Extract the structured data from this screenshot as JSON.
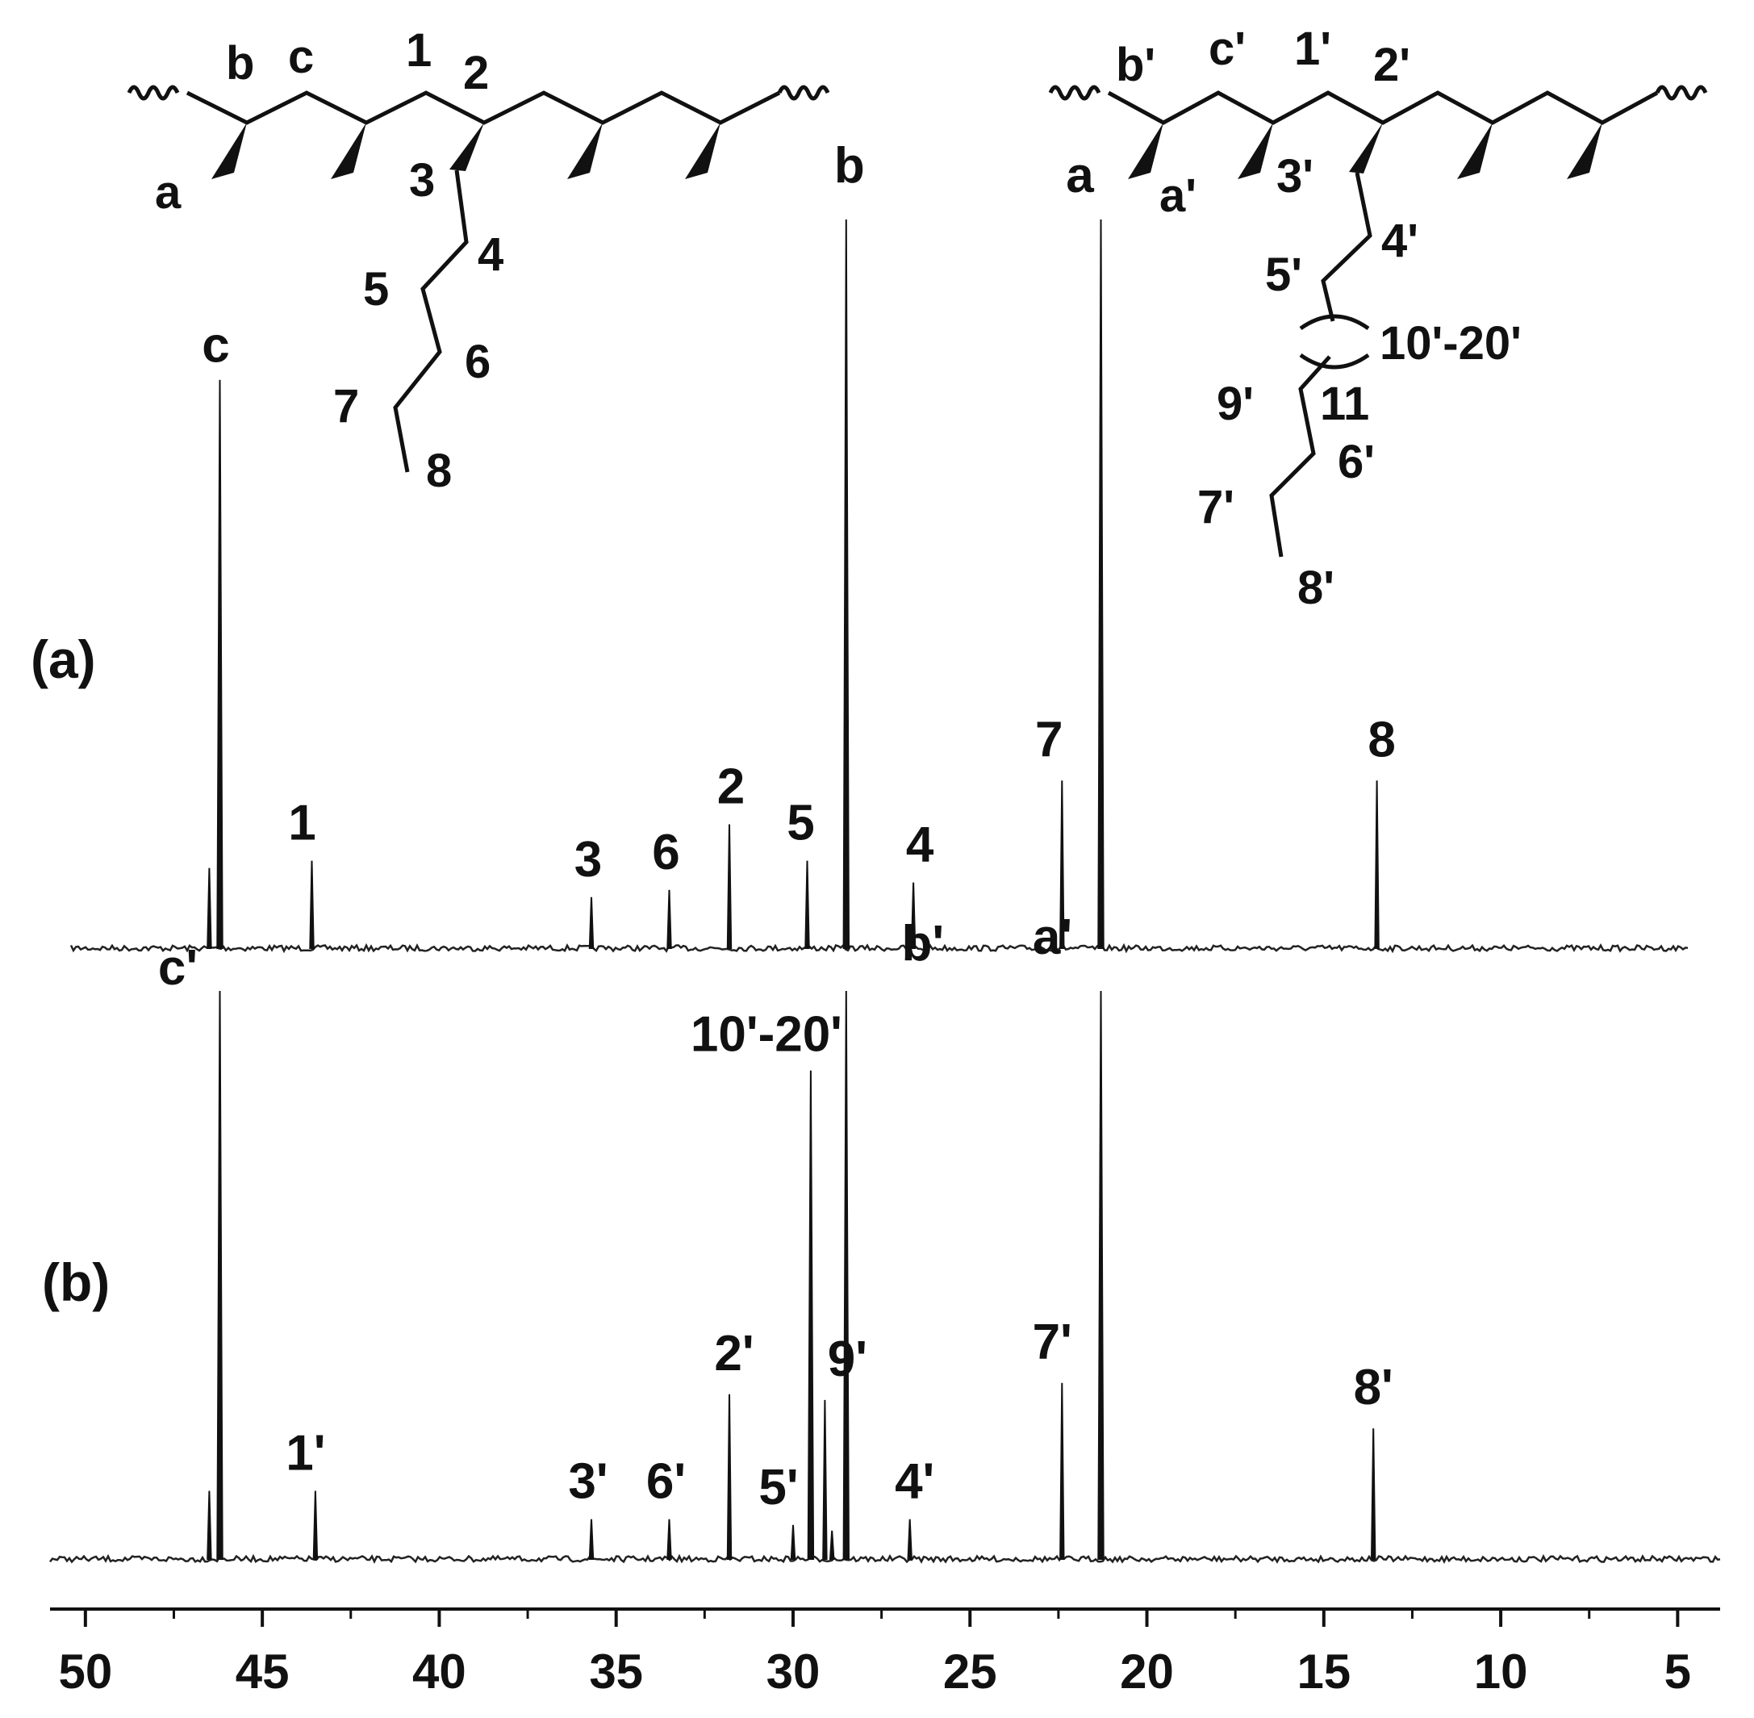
{
  "chart_data": {
    "type": "line",
    "x_axis": {
      "reversed": true,
      "xlim": [
        51,
        3.8
      ],
      "major_ticks": [
        50,
        45,
        40,
        35,
        30,
        25,
        20,
        15,
        10,
        5
      ],
      "minor_ticks": [
        47.5,
        42.5,
        37.5,
        32.5,
        27.5,
        22.5,
        17.5,
        12.5,
        7.5
      ],
      "tick_labels": [
        "50",
        "45",
        "40",
        "35",
        "30",
        "25",
        "20",
        "15",
        "10",
        "5"
      ]
    },
    "series": [
      {
        "panel_label": "(a)",
        "peaks": [
          {
            "label": "c",
            "x": 46.2,
            "intensity": 0.78
          },
          {
            "label": "",
            "x": 46.5,
            "intensity": 0.11
          },
          {
            "label": "1",
            "x": 43.6,
            "intensity": 0.12
          },
          {
            "label": "3",
            "x": 35.7,
            "intensity": 0.07
          },
          {
            "label": "6",
            "x": 33.5,
            "intensity": 0.08
          },
          {
            "label": "2",
            "x": 31.8,
            "intensity": 0.17
          },
          {
            "label": "5",
            "x": 29.6,
            "intensity": 0.12
          },
          {
            "label": "b",
            "x": 28.5,
            "intensity": 1.0
          },
          {
            "label": "4",
            "x": 26.6,
            "intensity": 0.09
          },
          {
            "label": "7",
            "x": 22.4,
            "intensity": 0.23
          },
          {
            "label": "a",
            "x": 21.3,
            "intensity": 1.0
          },
          {
            "label": "8",
            "x": 13.5,
            "intensity": 0.23
          }
        ]
      },
      {
        "panel_label": "(b)",
        "peaks": [
          {
            "label": "c'",
            "x": 46.2,
            "intensity": 1.0
          },
          {
            "label": "",
            "x": 46.5,
            "intensity": 0.12
          },
          {
            "label": "1'",
            "x": 43.5,
            "intensity": 0.12
          },
          {
            "label": "3'",
            "x": 35.7,
            "intensity": 0.07
          },
          {
            "label": "6'",
            "x": 33.5,
            "intensity": 0.07
          },
          {
            "label": "2'",
            "x": 31.8,
            "intensity": 0.29
          },
          {
            "label": "5'",
            "x": 30.0,
            "intensity": 0.06
          },
          {
            "label": "10'-20'",
            "x": 29.5,
            "intensity": 0.86
          },
          {
            "label": "9'",
            "x": 29.1,
            "intensity": 0.28
          },
          {
            "label": "",
            "x": 28.9,
            "intensity": 0.05
          },
          {
            "label": "b'",
            "x": 28.5,
            "intensity": 1.0
          },
          {
            "label": "4'",
            "x": 26.7,
            "intensity": 0.07
          },
          {
            "label": "7'",
            "x": 22.4,
            "intensity": 0.31
          },
          {
            "label": "a'",
            "x": 21.3,
            "intensity": 1.0
          },
          {
            "label": "8'",
            "x": 13.6,
            "intensity": 0.23
          }
        ]
      }
    ]
  },
  "structures": {
    "left": {
      "labels": [
        "a",
        "b",
        "c",
        "1",
        "2",
        "3",
        "4",
        "5",
        "6",
        "7",
        "8"
      ]
    },
    "right": {
      "labels": [
        "a'",
        "b'",
        "c'",
        "1'",
        "2'",
        "3'",
        "4'",
        "5'",
        "10'-20'",
        "9'",
        "11",
        "6'",
        "7'",
        "8'"
      ]
    }
  }
}
